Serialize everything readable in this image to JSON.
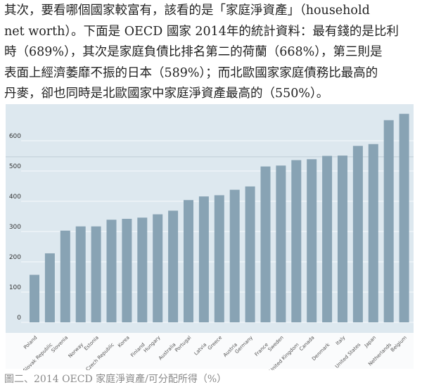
{
  "paragraph": {
    "lines": [
      "其次，要看哪個國家較富有，該看的是「家庭淨資產」（household",
      "net worth）。下面是 OECD 國家 2014年的統計資料：最有錢的是比利",
      "時（689%），其次是家庭負債比排名第二的荷蘭（668%），第三則是",
      "表面上經濟萎靡不振的日本（589%）；而北歐國家家庭債務比最高的",
      "丹麥，卻也同時是北歐國家中家庭淨資產最高的（550%）。"
    ]
  },
  "caption": "圖二、2014 OECD 家庭淨資產/可分配所得（%）",
  "chart_data": {
    "type": "bar",
    "title": "",
    "xlabel": "",
    "ylabel": "",
    "ylim": [
      0,
      700
    ],
    "yticks": [
      "0",
      "100",
      "200",
      "300",
      "400",
      "500",
      "600"
    ],
    "grid": true,
    "colors": {
      "bar": "#88a3b4",
      "background": "#dde8ef",
      "grid": "#f2f6f9"
    },
    "categories": [
      "Poland",
      "Slovak Republic",
      "Slovenia",
      "Norway",
      "Estonia",
      "Czech Republic",
      "Korea",
      "Finland",
      "Hungary",
      "Australia",
      "Portugal",
      "Latvia",
      "Greece",
      "Austria",
      "Germany",
      "France",
      "Sweden",
      "United Kingdom",
      "Canada",
      "Denmark",
      "Italy",
      "United States",
      "Japan",
      "Netherlands",
      "Belgium"
    ],
    "values": [
      157,
      228,
      303,
      317,
      317,
      339,
      342,
      346,
      357,
      369,
      404,
      416,
      420,
      438,
      449,
      515,
      518,
      536,
      539,
      550,
      551,
      583,
      589,
      668,
      689
    ]
  }
}
